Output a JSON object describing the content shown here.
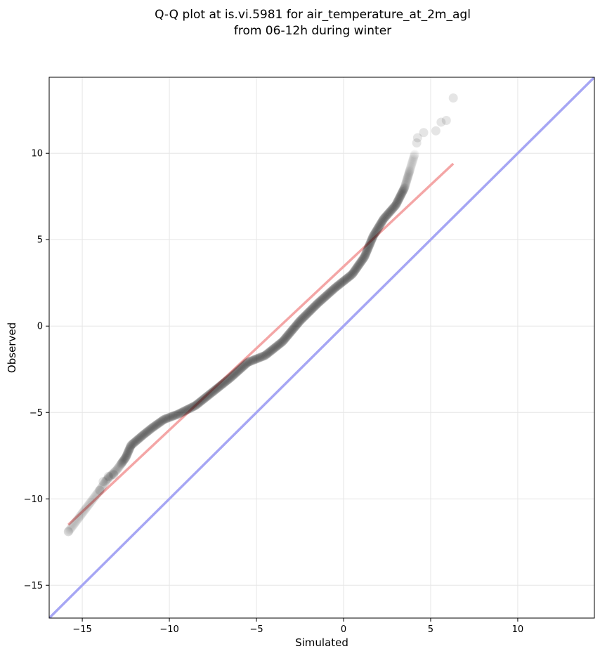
{
  "chart_data": {
    "type": "scatter",
    "title": "Q-Q plot at is.vi.5981 for air_temperature_at_2m_agl",
    "subtitle": "from 06-12h during winter",
    "xlabel": "Simulated",
    "ylabel": "Observed",
    "xlim": [
      -16.9,
      14.4
    ],
    "ylim": [
      -16.9,
      14.4
    ],
    "xticks": [
      -15,
      -10,
      -5,
      0,
      5,
      10
    ],
    "yticks": [
      -15,
      -10,
      -5,
      0,
      5,
      10
    ],
    "xtick_labels": [
      "−15",
      "−10",
      "−5",
      "0",
      "5",
      "10"
    ],
    "ytick_labels": [
      "−15",
      "−10",
      "−5",
      "0",
      "5",
      "10"
    ],
    "grid": true,
    "colors": {
      "points": "#000000",
      "fit_line": "#f4a6a6",
      "identity_line": "#a6a6f4"
    },
    "quantile_curve": [
      [
        -15.8,
        -11.9
      ],
      [
        -14.0,
        -9.5
      ],
      [
        -13.6,
        -8.9
      ],
      [
        -13.0,
        -8.3
      ],
      [
        -12.5,
        -7.6
      ],
      [
        -12.2,
        -6.9
      ],
      [
        -11.5,
        -6.3
      ],
      [
        -11.0,
        -5.9
      ],
      [
        -10.3,
        -5.4
      ],
      [
        -9.5,
        -5.1
      ],
      [
        -8.5,
        -4.6
      ],
      [
        -7.5,
        -3.8
      ],
      [
        -6.5,
        -3.0
      ],
      [
        -5.5,
        -2.1
      ],
      [
        -4.5,
        -1.7
      ],
      [
        -3.5,
        -0.9
      ],
      [
        -2.5,
        0.3
      ],
      [
        -1.5,
        1.3
      ],
      [
        -0.5,
        2.2
      ],
      [
        0.5,
        3.0
      ],
      [
        1.2,
        4.0
      ],
      [
        1.7,
        5.2
      ],
      [
        2.3,
        6.2
      ],
      [
        3.0,
        7.0
      ],
      [
        3.5,
        8.0
      ],
      [
        3.8,
        9.0
      ],
      [
        4.1,
        10.0
      ]
    ],
    "extreme_points": [
      [
        -15.8,
        -11.9
      ],
      [
        -14.0,
        -9.5
      ],
      [
        -13.8,
        -9.0
      ],
      [
        -13.5,
        -8.7
      ],
      [
        -13.2,
        -8.6
      ],
      [
        4.2,
        10.6
      ],
      [
        4.25,
        10.9
      ],
      [
        4.6,
        11.2
      ],
      [
        5.3,
        11.3
      ],
      [
        5.6,
        11.8
      ],
      [
        5.9,
        11.9
      ],
      [
        6.3,
        13.2
      ]
    ],
    "fit_line": {
      "x": [
        -15.8,
        6.3
      ],
      "y": [
        -11.5,
        9.4
      ]
    },
    "identity_line": {
      "x": [
        -16.9,
        14.4
      ],
      "y": [
        -16.9,
        14.4
      ]
    }
  }
}
